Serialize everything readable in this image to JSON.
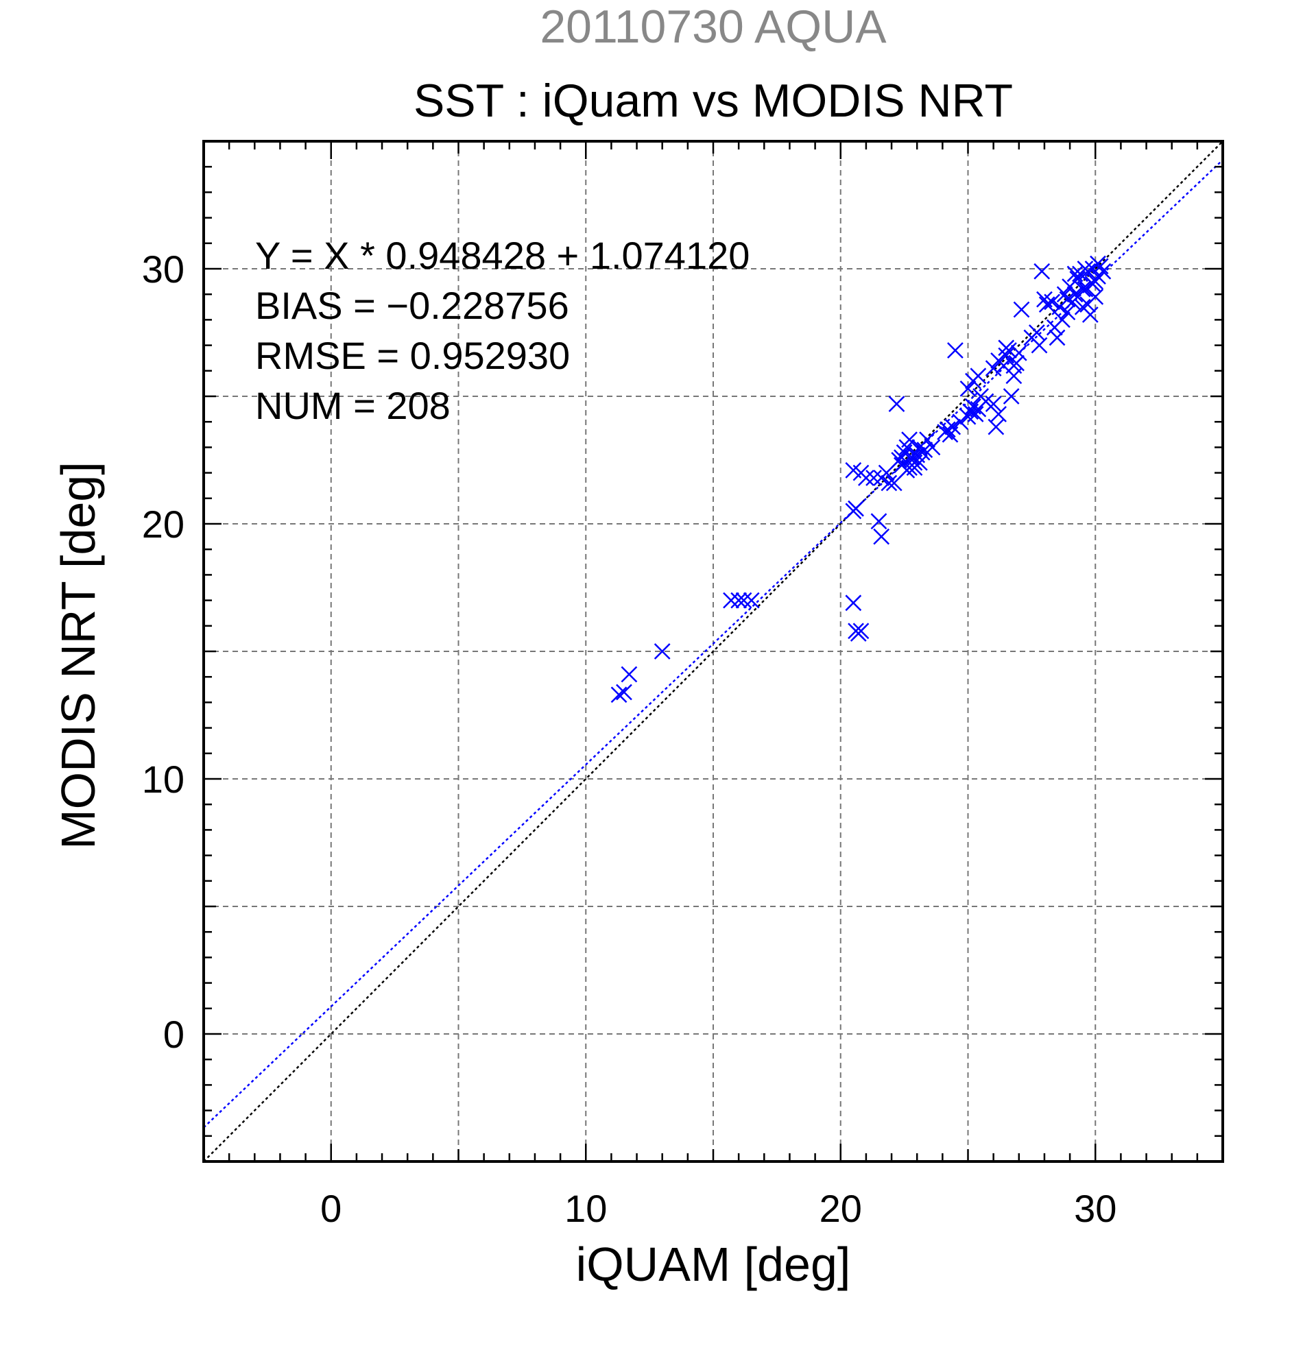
{
  "chart_data": {
    "type": "scatter",
    "date_title": "20110730 AQUA",
    "title": "SST : iQuam vs MODIS NRT",
    "xlabel": "iQUAM [deg]",
    "ylabel": "MODIS NRT [deg]",
    "xlim": [
      -5,
      35
    ],
    "ylim": [
      -5,
      35
    ],
    "xticks": [
      "0",
      "10",
      "20",
      "30"
    ],
    "yticks": [
      "0",
      "10",
      "20",
      "30"
    ],
    "grid": true,
    "stats": [
      "Y = X * 0.948428 + 1.074120",
      "BIAS = −0.228756",
      "RMSE = 0.952930",
      "NUM = 208"
    ],
    "fit": {
      "slope": 0.948428,
      "intercept": 1.07412
    },
    "colors": {
      "points": "#0000ff",
      "fit_line": "#0000ff",
      "identity_line": "#000000",
      "date_title": "#888888"
    },
    "points": [
      [
        11.3,
        13.3
      ],
      [
        11.5,
        13.4
      ],
      [
        11.7,
        14.1
      ],
      [
        13.0,
        15.0
      ],
      [
        15.7,
        17.0
      ],
      [
        16.0,
        17.0
      ],
      [
        16.2,
        17.0
      ],
      [
        16.5,
        17.0
      ],
      [
        20.5,
        22.1
      ],
      [
        20.5,
        20.5
      ],
      [
        20.6,
        20.6
      ],
      [
        20.8,
        22.0
      ],
      [
        21.0,
        21.8
      ],
      [
        21.3,
        21.8
      ],
      [
        21.6,
        21.8
      ],
      [
        21.8,
        22.0
      ],
      [
        21.5,
        20.1
      ],
      [
        21.6,
        19.5
      ],
      [
        21.9,
        21.6
      ],
      [
        22.1,
        21.6
      ],
      [
        22.2,
        24.7
      ],
      [
        22.3,
        22.5
      ],
      [
        22.4,
        22.3
      ],
      [
        22.5,
        22.8
      ],
      [
        22.6,
        23.0
      ],
      [
        22.7,
        22.2
      ],
      [
        22.8,
        22.6
      ],
      [
        22.9,
        22.4
      ],
      [
        23.0,
        22.7
      ],
      [
        23.1,
        23.0
      ],
      [
        23.2,
        22.8
      ],
      [
        23.4,
        23.3
      ],
      [
        23.6,
        23.0
      ],
      [
        22.4,
        22.6
      ],
      [
        22.6,
        22.1
      ],
      [
        22.9,
        22.2
      ],
      [
        23.1,
        22.4
      ],
      [
        23.3,
        22.9
      ],
      [
        22.7,
        23.3
      ],
      [
        24.1,
        23.6
      ],
      [
        24.2,
        23.7
      ],
      [
        24.3,
        23.5
      ],
      [
        24.4,
        23.8
      ],
      [
        24.5,
        26.8
      ],
      [
        24.7,
        24.0
      ],
      [
        25.0,
        24.2
      ],
      [
        25.1,
        24.4
      ],
      [
        25.2,
        24.6
      ],
      [
        25.3,
        24.3
      ],
      [
        25.4,
        24.5
      ],
      [
        25.0,
        25.3
      ],
      [
        25.2,
        25.6
      ],
      [
        25.4,
        25.8
      ],
      [
        25.5,
        25.0
      ],
      [
        25.7,
        24.8
      ],
      [
        26.0,
        24.7
      ],
      [
        26.1,
        23.8
      ],
      [
        26.2,
        24.3
      ],
      [
        26.0,
        26.1
      ],
      [
        26.2,
        26.4
      ],
      [
        26.4,
        26.2
      ],
      [
        26.5,
        26.6
      ],
      [
        26.6,
        26.8
      ],
      [
        26.7,
        25.0
      ],
      [
        26.8,
        25.8
      ],
      [
        26.9,
        26.3
      ],
      [
        27.0,
        26.7
      ],
      [
        27.1,
        28.4
      ],
      [
        26.5,
        26.9
      ],
      [
        26.8,
        26.2
      ],
      [
        27.5,
        27.3
      ],
      [
        27.7,
        27.5
      ],
      [
        27.8,
        27.0
      ],
      [
        27.9,
        29.9
      ],
      [
        28.0,
        28.8
      ],
      [
        28.1,
        28.6
      ],
      [
        28.3,
        28.7
      ],
      [
        28.4,
        27.7
      ],
      [
        28.5,
        27.3
      ],
      [
        28.6,
        28.5
      ],
      [
        28.7,
        28.0
      ],
      [
        28.8,
        29.0
      ],
      [
        28.9,
        28.3
      ],
      [
        29.0,
        29.3
      ],
      [
        29.1,
        28.7
      ],
      [
        29.2,
        29.0
      ],
      [
        29.3,
        29.6
      ],
      [
        29.4,
        29.8
      ],
      [
        29.5,
        28.5
      ],
      [
        29.6,
        29.2
      ],
      [
        29.7,
        29.9
      ],
      [
        29.8,
        28.2
      ],
      [
        29.9,
        30.0
      ],
      [
        30.0,
        29.5
      ],
      [
        30.1,
        29.7
      ],
      [
        30.2,
        30.1
      ],
      [
        30.3,
        29.9
      ],
      [
        30.0,
        28.9
      ],
      [
        29.5,
        29.2
      ],
      [
        29.7,
        28.6
      ],
      [
        29.9,
        29.4
      ],
      [
        30.1,
        30.2
      ],
      [
        29.2,
        29.8
      ],
      [
        28.9,
        28.8
      ],
      [
        29.6,
        30.0
      ],
      [
        20.5,
        16.9
      ],
      [
        20.6,
        15.8
      ],
      [
        20.7,
        15.7
      ],
      [
        20.8,
        15.8
      ]
    ]
  }
}
